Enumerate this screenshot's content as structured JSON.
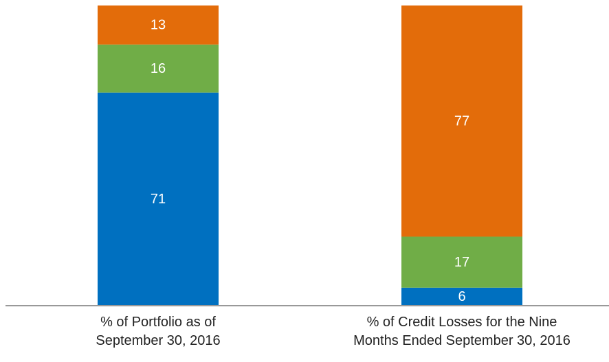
{
  "chart_data": {
    "type": "stacked_bar",
    "categories": [
      "% of Portfolio as of\nSeptember 30, 2016",
      "% of Credit Losses for the Nine\nMonths Ended September 30, 2016"
    ],
    "series": [
      {
        "color": "#0070c0",
        "values": [
          71,
          6
        ]
      },
      {
        "color": "#70ad47",
        "values": [
          16,
          17
        ]
      },
      {
        "color": "#e36c0a",
        "values": [
          13,
          77
        ]
      }
    ],
    "ylim": [
      0,
      100
    ]
  }
}
